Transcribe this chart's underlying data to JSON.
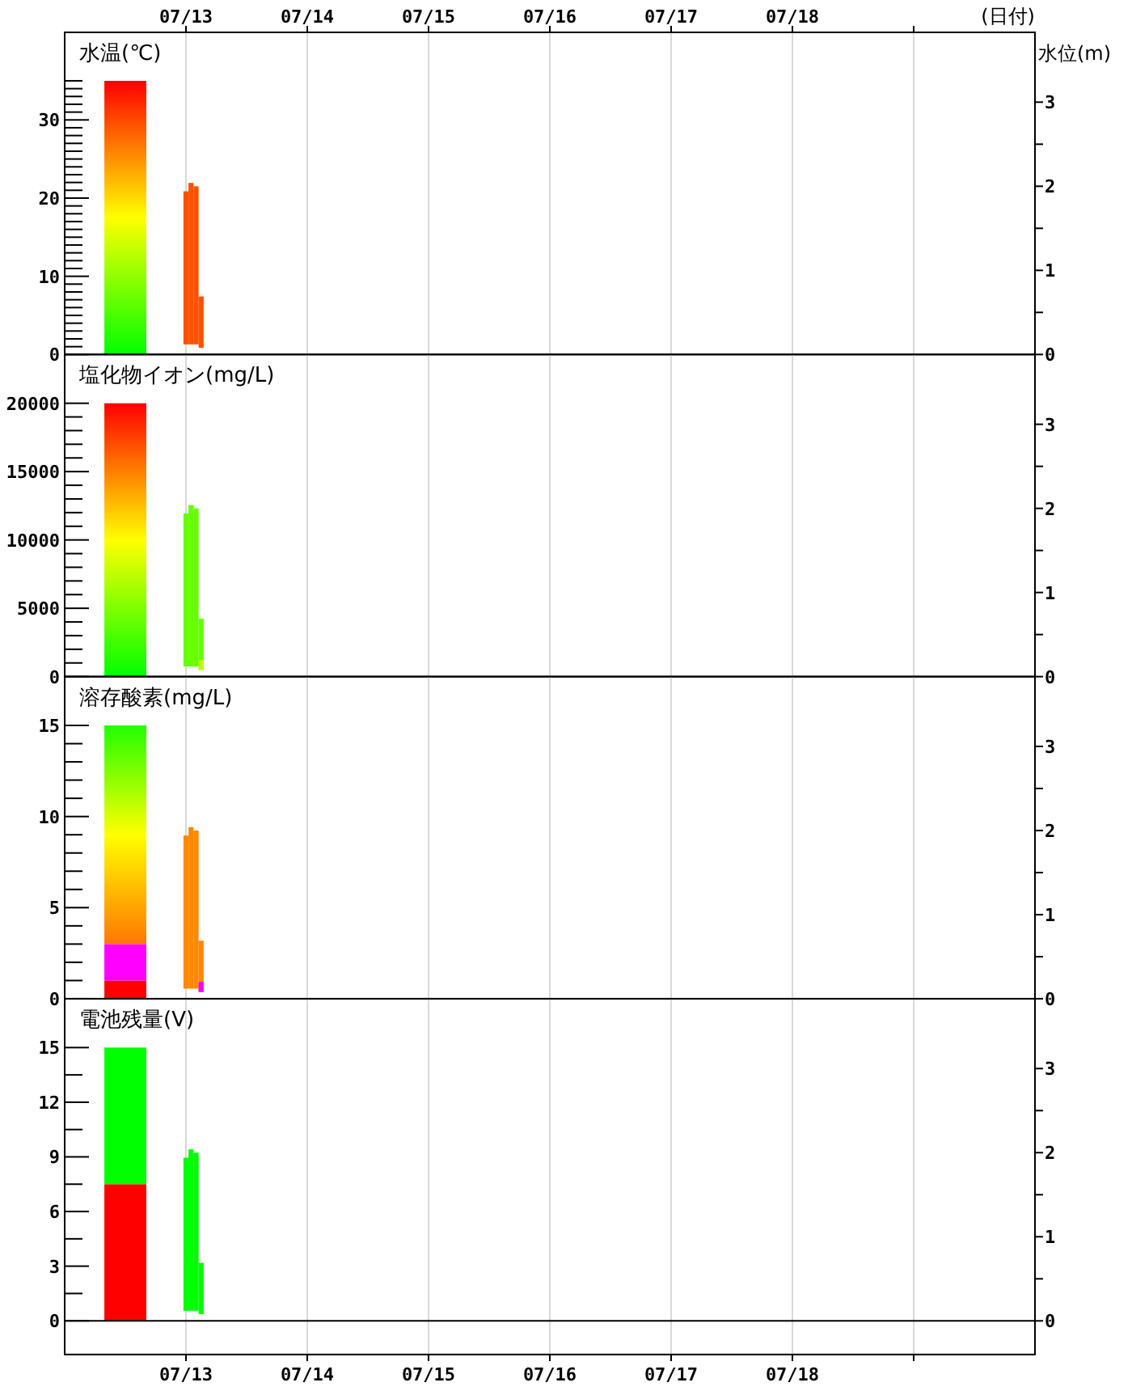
{
  "chart_data": [
    {
      "type": "bar",
      "title": "水温(℃)",
      "x2label": "(日付)",
      "y2label": "水位(m)",
      "grid": "x",
      "tick_labels": "y",
      "xlim": [
        "--07-12",
        "--07-20"
      ],
      "xticks": [
        "--07-13",
        "--07-14",
        "--07-15",
        "--07-16",
        "--07-17",
        "--07-18",
        "--07-19"
      ],
      "x2lim": [
        "--07-12",
        "--07-20"
      ],
      "x2ticks": [
        {
          "value": "--07-13",
          "label": "07/13"
        },
        {
          "value": "--07-14",
          "label": "07/14"
        },
        {
          "value": "--07-15",
          "label": "07/15"
        },
        {
          "value": "--07-16",
          "label": "07/16"
        },
        {
          "value": "--07-17",
          "label": "07/17"
        },
        {
          "value": "--07-18",
          "label": "07/18"
        },
        {
          "value": "--07-19",
          "label": null
        }
      ],
      "ylim": [
        0,
        41.2
      ],
      "yticks": [
        0,
        {
          "value": 1,
          "label": null
        },
        {
          "value": 2,
          "label": null
        },
        {
          "value": 3,
          "label": null
        },
        {
          "value": 4,
          "label": null
        },
        {
          "value": 5,
          "label": null
        },
        {
          "value": 6,
          "label": null
        },
        {
          "value": 7,
          "label": null
        },
        {
          "value": 8,
          "label": null
        },
        {
          "value": 9,
          "label": null
        },
        10,
        {
          "value": 11,
          "label": null
        },
        {
          "value": 12,
          "label": null
        },
        {
          "value": 13,
          "label": null
        },
        {
          "value": 14,
          "label": null
        },
        {
          "value": 15,
          "label": null
        },
        {
          "value": 16,
          "label": null
        },
        {
          "value": 17,
          "label": null
        },
        {
          "value": 18,
          "label": null
        },
        {
          "value": 19,
          "label": null
        },
        20,
        {
          "value": 21,
          "label": null
        },
        {
          "value": 22,
          "label": null
        },
        {
          "value": 23,
          "label": null
        },
        {
          "value": 24,
          "label": null
        },
        {
          "value": 25,
          "label": null
        },
        {
          "value": 26,
          "label": null
        },
        {
          "value": 27,
          "label": null
        },
        {
          "value": 28,
          "label": null
        },
        {
          "value": 29,
          "label": null
        },
        30,
        {
          "value": 31,
          "label": null
        },
        {
          "value": 32,
          "label": null
        },
        {
          "value": 33,
          "label": null
        },
        {
          "value": 34,
          "label": null
        },
        {
          "value": 35,
          "label": null
        }
      ],
      "y2lim": [
        0,
        3.83
      ],
      "y2ticks": [
        0,
        {
          "value": 0.5,
          "label": null
        },
        1,
        {
          "value": 1.5,
          "label": null
        },
        2,
        {
          "value": 2.5,
          "label": null
        },
        3
      ],
      "colors": [
        "#00ff00",
        "#ffff00",
        "#ff0000"
      ],
      "series": [
        {
          "axis": "y",
          "x": [
            "--07-12T12:00"
          ],
          "base": [
            0
          ],
          "values": [
            35
          ]
        },
        {
          "axis": "y2",
          "x": [
            "--07-13T00:00",
            "--07-13T01:00",
            "--07-13T02:00",
            "--07-13T03:00"
          ],
          "base": [
            0.12,
            0.12,
            0.12,
            0.08
          ],
          "values": [
            1.82,
            1.92,
            1.88,
            0.61
          ],
          "colors": [
            "#ff5000",
            "#ff5000",
            "#ff5000",
            "#ff5000"
          ]
        }
      ]
    },
    {
      "type": "bar",
      "title": "塩化物イオン(mg/L)",
      "grid": "x",
      "tick_labels": "y",
      "xlim": [
        "--07-12",
        "--07-20"
      ],
      "xticks": [
        "--07-13",
        "--07-14",
        "--07-15",
        "--07-16",
        "--07-17",
        "--07-18",
        "--07-19"
      ],
      "ylim": [
        0,
        23570
      ],
      "yticks": [
        0,
        {
          "value": 1000,
          "label": null
        },
        {
          "value": 2000,
          "label": null
        },
        {
          "value": 3000,
          "label": null
        },
        {
          "value": 4000,
          "label": null
        },
        5000,
        {
          "value": 6000,
          "label": null
        },
        {
          "value": 7000,
          "label": null
        },
        {
          "value": 8000,
          "label": null
        },
        {
          "value": 9000,
          "label": null
        },
        10000,
        {
          "value": 11000,
          "label": null
        },
        {
          "value": 12000,
          "label": null
        },
        {
          "value": 13000,
          "label": null
        },
        {
          "value": 14000,
          "label": null
        },
        15000,
        {
          "value": 16000,
          "label": null
        },
        {
          "value": 17000,
          "label": null
        },
        {
          "value": 18000,
          "label": null
        },
        {
          "value": 19000,
          "label": null
        },
        20000
      ],
      "y2lim": [
        0,
        3.83
      ],
      "y2ticks": [
        0,
        {
          "value": 0.5,
          "label": null
        },
        1,
        {
          "value": 1.5,
          "label": null
        },
        2,
        {
          "value": 2.5,
          "label": null
        },
        3
      ],
      "colors": [
        "#00ff00",
        "#ffff00",
        "#ff0000"
      ],
      "series": [
        {
          "axis": "y",
          "x": [
            "--07-12T12:00"
          ],
          "base": [
            0
          ],
          "values": [
            20000
          ]
        },
        {
          "axis": "y2",
          "x": [
            "--07-13T00:00",
            "--07-13T01:00",
            "--07-13T02:00",
            "--07-13T03:00"
          ],
          "base": [
            0.12,
            0.12,
            0.12,
            0.08
          ],
          "values": [
            1.82,
            1.92,
            1.88,
            0.61
          ],
          "colors": [
            "#66ff00",
            "#66ff00",
            "#66ff00",
            "#66ff00"
          ]
        },
        {
          "axis": "y2",
          "x": [
            "--07-13T03:00"
          ],
          "base": [
            0.08
          ],
          "values": [
            0.12
          ],
          "colors": [
            "#bbff00"
          ]
        }
      ]
    },
    {
      "type": "bar",
      "title": "溶存酸素(mg/L)",
      "grid": "x",
      "tick_labels": "y",
      "xlim": [
        "--07-12",
        "--07-20"
      ],
      "xticks": [
        "--07-13",
        "--07-14",
        "--07-15",
        "--07-16",
        "--07-17",
        "--07-18",
        "--07-19"
      ],
      "ylim": [
        0,
        17.68
      ],
      "yticks": [
        0,
        {
          "value": 1,
          "label": null
        },
        {
          "value": 2,
          "label": null
        },
        {
          "value": 3,
          "label": null
        },
        {
          "value": 4,
          "label": null
        },
        5,
        {
          "value": 6,
          "label": null
        },
        {
          "value": 7,
          "label": null
        },
        {
          "value": 8,
          "label": null
        },
        {
          "value": 9,
          "label": null
        },
        10,
        {
          "value": 11,
          "label": null
        },
        {
          "value": 12,
          "label": null
        },
        {
          "value": 13,
          "label": null
        },
        {
          "value": 14,
          "label": null
        },
        15
      ],
      "y2lim": [
        0,
        3.83
      ],
      "y2ticks": [
        0,
        {
          "value": 0.5,
          "label": null
        },
        1,
        {
          "value": 1.5,
          "label": null
        },
        2,
        {
          "value": 2.5,
          "label": null
        },
        3
      ],
      "colors": [
        "#ff7700",
        "#ffff00",
        "#22ff00"
      ],
      "series": [
        {
          "axis": "y",
          "x": [
            "--07-12T12:00"
          ],
          "base": [
            0
          ],
          "values": [
            1
          ],
          "colors": [
            "#ff0000"
          ]
        },
        {
          "axis": "y",
          "x": [
            "--07-12T12:00"
          ],
          "base": [
            1
          ],
          "values": [
            2
          ],
          "colors": [
            "#ff00ff"
          ]
        },
        {
          "axis": "y",
          "x": [
            "--07-12T12:00"
          ],
          "base": [
            3
          ],
          "values": [
            12
          ]
        },
        {
          "axis": "y2",
          "x": [
            "--07-13T00:00",
            "--07-13T01:00",
            "--07-13T02:00",
            "--07-13T03:00"
          ],
          "base": [
            0.12,
            0.12,
            0.12,
            0.08
          ],
          "values": [
            1.82,
            1.92,
            1.88,
            0.61
          ],
          "colors": [
            "#ff8800",
            "#ff8800",
            "#ff8800",
            "#ff8800"
          ]
        },
        {
          "axis": "y2",
          "x": [
            "--07-13T03:00"
          ],
          "base": [
            0.08
          ],
          "values": [
            0.12
          ],
          "colors": [
            "#ff00ff"
          ]
        }
      ]
    },
    {
      "type": "bar",
      "title": "電池残量(V)",
      "grid": "x",
      "xlim": [
        "--07-12",
        "--07-20"
      ],
      "xticks": [
        {
          "value": "--07-13",
          "label": "07/13"
        },
        {
          "value": "--07-14",
          "label": "07/14"
        },
        {
          "value": "--07-15",
          "label": "07/15"
        },
        {
          "value": "--07-16",
          "label": "07/16"
        },
        {
          "value": "--07-17",
          "label": "07/17"
        },
        {
          "value": "--07-18",
          "label": "07/18"
        },
        {
          "value": "--07-19",
          "label": null
        }
      ],
      "ylim": [
        -1.85,
        17.68
      ],
      "yticks": [
        0,
        {
          "value": 1.5,
          "label": null
        },
        3,
        {
          "value": 4.5,
          "label": null
        },
        6,
        {
          "value": 7.5,
          "label": null
        },
        9,
        {
          "value": 10.5,
          "label": null
        },
        12,
        {
          "value": 13.5,
          "label": null
        },
        15
      ],
      "y2lim": [
        -0.4,
        3.83
      ],
      "y2ticks": [
        0,
        {
          "value": 0.5,
          "label": null
        },
        1,
        {
          "value": 1.5,
          "label": null
        },
        2,
        {
          "value": 2.5,
          "label": null
        },
        3
      ],
      "series": [
        {
          "axis": "y",
          "x": [
            "--07-12T12:00"
          ],
          "base": [
            0
          ],
          "values": [
            7.5
          ],
          "colors": [
            "#ff0000"
          ]
        },
        {
          "axis": "y",
          "x": [
            "--07-12T12:00"
          ],
          "base": [
            7.5
          ],
          "values": [
            7.5
          ],
          "colors": [
            "#00ff00"
          ]
        },
        {
          "axis": "y2",
          "x": [
            "--07-13T00:00",
            "--07-13T01:00",
            "--07-13T02:00",
            "--07-13T03:00"
          ],
          "base": [
            0.12,
            0.12,
            0.12,
            0.08
          ],
          "values": [
            1.82,
            1.92,
            1.88,
            0.61
          ],
          "colors": [
            "#00ff00",
            "#00ff00",
            "#00ff00",
            "#00ff00"
          ]
        }
      ]
    }
  ]
}
